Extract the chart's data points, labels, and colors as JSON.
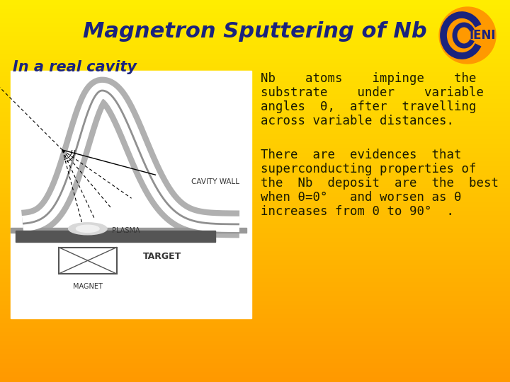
{
  "title": "Magnetron Sputtering of Nb",
  "title_color": "#1a237e",
  "title_fontsize": 22,
  "subtitle": "In a real cavity",
  "subtitle_color": "#1a237e",
  "subtitle_fontsize": 15,
  "text_color": "#1a1a00",
  "p1_line1": "Nb    atoms    impinge    the",
  "p1_line2": "substrate    under    variable",
  "p1_line3": "angles  θ,  after  travelling",
  "p1_line4": "across variable distances.",
  "p2_line1": "There  are  evidences  that",
  "p2_line2": "superconducting properties of",
  "p2_line3": "the  Nb  deposit  are  the  best",
  "p2_line4": "when θ=0°   and worsen as θ",
  "p2_line5": "increases from 0 to 90°  .",
  "text_fontsize": 12.5,
  "cavity_wall_label": "CAVITY WALL",
  "plasma_label": "PLASMA",
  "target_label": "TARGET",
  "magnet_label": "MAGNET"
}
